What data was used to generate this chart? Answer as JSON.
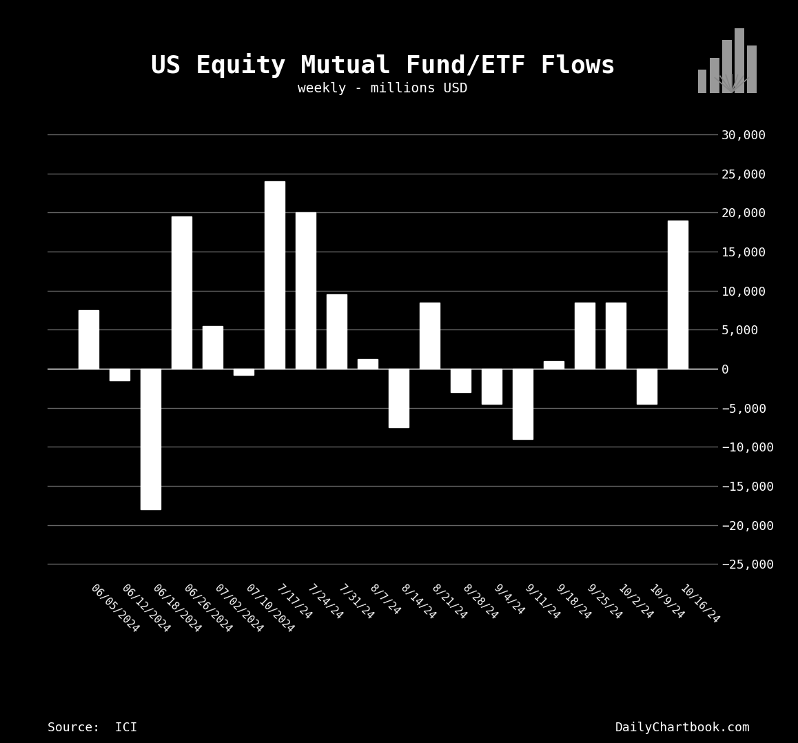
{
  "title": "US Equity Mutual Fund/ETF Flows",
  "subtitle": "weekly - millions USD",
  "source_left": "Source:  ICI",
  "source_right": "DailyChartbook.com",
  "background_color": "#000000",
  "bar_color": "#ffffff",
  "text_color": "#ffffff",
  "grid_color": "#666666",
  "categories": [
    "06/05/2024",
    "06/12/2024",
    "06/18/2024",
    "06/26/2024",
    "07/02/2024",
    "07/10/2024",
    "7/17/24",
    "7/24/24",
    "7/31/24",
    "8/7/24",
    "8/14/24",
    "8/21/24",
    "8/28/24",
    "9/4/24",
    "9/11/24",
    "9/18/24",
    "9/25/24",
    "10/2/24",
    "10/9/24",
    "10/16/24"
  ],
  "values": [
    7500,
    -1500,
    -18000,
    19500,
    5500,
    -800,
    24000,
    20000,
    9500,
    1200,
    -7500,
    8500,
    -3000,
    -4500,
    -9000,
    1000,
    8500,
    8500,
    -4500,
    19000
  ],
  "ylim": [
    -27000,
    32000
  ],
  "yticks": [
    -25000,
    -20000,
    -15000,
    -10000,
    -5000,
    0,
    5000,
    10000,
    15000,
    20000,
    25000,
    30000
  ]
}
